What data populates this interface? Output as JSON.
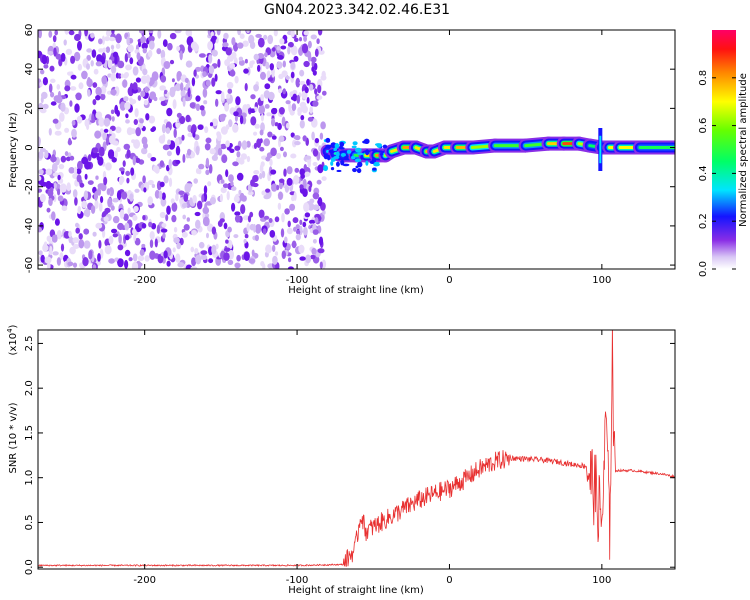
{
  "title": "GN04.2023.342.02.46.E31",
  "colorbar": {
    "label": "Normalized spectral amplitude",
    "ticks": [
      "0.0",
      "0.2",
      "0.4",
      "0.6",
      "0.8"
    ],
    "tick_values": [
      0.0,
      0.2,
      0.4,
      0.6,
      0.8
    ],
    "range": [
      0,
      1
    ]
  },
  "chart_data": [
    {
      "type": "heatmap",
      "xlabel": "Height of straight line (km)",
      "ylabel": "Frequency (Hz)",
      "xlim": [
        -270,
        148
      ],
      "ylim": [
        -62,
        60
      ],
      "xticks": [
        -200,
        -100,
        0,
        100
      ],
      "xtick_labels": [
        "-200",
        "-100",
        "0",
        "100"
      ],
      "yticks": [
        -60,
        -40,
        -20,
        0,
        20,
        40,
        60
      ],
      "ytick_labels": [
        "-60",
        "-40",
        "-20",
        "0",
        "20",
        "40",
        "60"
      ],
      "noise_region_x": [
        -270,
        -82
      ],
      "ridge": [
        {
          "x": -80,
          "y": -2,
          "a": 0.3
        },
        {
          "x": -75,
          "y": -3,
          "a": 0.35
        },
        {
          "x": -70,
          "y": -4,
          "a": 0.4
        },
        {
          "x": -62,
          "y": -4,
          "a": 0.45
        },
        {
          "x": -55,
          "y": -4,
          "a": 0.55
        },
        {
          "x": -48,
          "y": -4,
          "a": 0.9
        },
        {
          "x": -42,
          "y": -4,
          "a": 0.7
        },
        {
          "x": -38,
          "y": -2,
          "a": 0.6
        },
        {
          "x": -30,
          "y": 0,
          "a": 0.85
        },
        {
          "x": -22,
          "y": 0,
          "a": 0.75
        },
        {
          "x": -15,
          "y": -2,
          "a": 0.7
        },
        {
          "x": -10,
          "y": -2,
          "a": 0.85
        },
        {
          "x": -3,
          "y": 0,
          "a": 0.6
        },
        {
          "x": 5,
          "y": 0,
          "a": 0.85
        },
        {
          "x": 15,
          "y": 0,
          "a": 0.7
        },
        {
          "x": 30,
          "y": 1,
          "a": 0.55
        },
        {
          "x": 50,
          "y": 1,
          "a": 0.5
        },
        {
          "x": 65,
          "y": 2,
          "a": 0.55
        },
        {
          "x": 75,
          "y": 2,
          "a": 0.95
        },
        {
          "x": 85,
          "y": 2,
          "a": 0.8
        },
        {
          "x": 92,
          "y": 1,
          "a": 0.5
        },
        {
          "x": 100,
          "y": 0,
          "a": 0.4
        },
        {
          "x": 105,
          "y": 0,
          "a": 0.5
        },
        {
          "x": 112,
          "y": 0,
          "a": 0.9
        },
        {
          "x": 125,
          "y": 0,
          "a": 0.5
        },
        {
          "x": 148,
          "y": 0,
          "a": 0.45
        }
      ]
    },
    {
      "type": "line",
      "xlabel": "Height of straight line (km)",
      "ylabel": "SNR (10 * v/v)",
      "yscale_label": "(x10",
      "yscale_exp": "4",
      "yscale_close": ")",
      "xlim": [
        -270,
        148
      ],
      "ylim": [
        -0.02,
        2.65
      ],
      "xticks": [
        -200,
        -100,
        0,
        100
      ],
      "xtick_labels": [
        "-200",
        "-100",
        "0",
        "100"
      ],
      "yticks": [
        0.0,
        0.5,
        1.0,
        1.5,
        2.0,
        2.5
      ],
      "ytick_labels": [
        "0.0",
        "0.5",
        "1.0",
        "1.5",
        "2.0",
        "2.5"
      ],
      "color": "#e83030",
      "x": [
        -270,
        -200,
        -100,
        -70,
        -62,
        -58,
        -55,
        -50,
        -40,
        -30,
        -20,
        -10,
        0,
        10,
        20,
        30,
        40,
        50,
        60,
        70,
        80,
        90,
        95,
        100,
        103,
        105,
        107,
        108,
        110,
        120,
        130,
        140,
        148
      ],
      "y": [
        0.02,
        0.02,
        0.02,
        0.03,
        0.2,
        0.6,
        0.4,
        0.45,
        0.55,
        0.65,
        0.75,
        0.82,
        0.88,
        0.98,
        1.1,
        1.18,
        1.22,
        1.21,
        1.2,
        1.18,
        1.15,
        1.13,
        0.9,
        0.5,
        1.7,
        0.3,
        2.6,
        1.1,
        1.08,
        1.08,
        1.06,
        1.04,
        1.01
      ]
    }
  ]
}
